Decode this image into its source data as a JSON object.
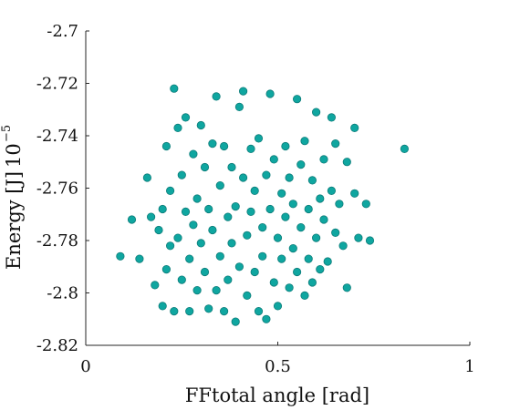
{
  "chart_data": {
    "type": "scatter",
    "xlabel": "FFtotal angle [rad]",
    "ylabel": "Energy [J]",
    "y_exponent": "10",
    "y_exponent_power": "−5",
    "xlim": [
      0,
      1
    ],
    "ylim": [
      -2.82,
      -2.7
    ],
    "xticks": [
      {
        "value": 0,
        "label": "0"
      },
      {
        "value": 0.5,
        "label": "0.5"
      },
      {
        "value": 1,
        "label": "1"
      }
    ],
    "yticks": [
      {
        "value": -2.7,
        "label": "-2.7"
      },
      {
        "value": -2.72,
        "label": "-2.72"
      },
      {
        "value": -2.74,
        "label": "-2.74"
      },
      {
        "value": -2.76,
        "label": "-2.76"
      },
      {
        "value": -2.78,
        "label": "-2.78"
      },
      {
        "value": -2.8,
        "label": "-2.8"
      },
      {
        "value": -2.82,
        "label": "-2.82"
      }
    ],
    "grid": false,
    "marker_color": "#0fa6a0",
    "marker_edge_color": "#0d7c79",
    "points": [
      [
        0.09,
        -2.786
      ],
      [
        0.12,
        -2.772
      ],
      [
        0.14,
        -2.787
      ],
      [
        0.16,
        -2.756
      ],
      [
        0.17,
        -2.771
      ],
      [
        0.18,
        -2.797
      ],
      [
        0.19,
        -2.776
      ],
      [
        0.2,
        -2.805
      ],
      [
        0.2,
        -2.768
      ],
      [
        0.21,
        -2.744
      ],
      [
        0.21,
        -2.791
      ],
      [
        0.22,
        -2.761
      ],
      [
        0.22,
        -2.782
      ],
      [
        0.23,
        -2.722
      ],
      [
        0.23,
        -2.807
      ],
      [
        0.24,
        -2.737
      ],
      [
        0.24,
        -2.779
      ],
      [
        0.25,
        -2.755
      ],
      [
        0.25,
        -2.795
      ],
      [
        0.26,
        -2.733
      ],
      [
        0.26,
        -2.769
      ],
      [
        0.27,
        -2.787
      ],
      [
        0.27,
        -2.807
      ],
      [
        0.28,
        -2.747
      ],
      [
        0.28,
        -2.774
      ],
      [
        0.29,
        -2.764
      ],
      [
        0.29,
        -2.799
      ],
      [
        0.3,
        -2.736
      ],
      [
        0.3,
        -2.781
      ],
      [
        0.31,
        -2.752
      ],
      [
        0.31,
        -2.792
      ],
      [
        0.32,
        -2.768
      ],
      [
        0.32,
        -2.806
      ],
      [
        0.33,
        -2.743
      ],
      [
        0.33,
        -2.776
      ],
      [
        0.34,
        -2.725
      ],
      [
        0.34,
        -2.799
      ],
      [
        0.35,
        -2.759
      ],
      [
        0.35,
        -2.786
      ],
      [
        0.36,
        -2.807
      ],
      [
        0.36,
        -2.744
      ],
      [
        0.37,
        -2.771
      ],
      [
        0.37,
        -2.795
      ],
      [
        0.38,
        -2.752
      ],
      [
        0.38,
        -2.781
      ],
      [
        0.39,
        -2.767
      ],
      [
        0.39,
        -2.811
      ],
      [
        0.4,
        -2.729
      ],
      [
        0.4,
        -2.79
      ],
      [
        0.41,
        -2.723
      ],
      [
        0.41,
        -2.756
      ],
      [
        0.42,
        -2.778
      ],
      [
        0.42,
        -2.801
      ],
      [
        0.43,
        -2.745
      ],
      [
        0.43,
        -2.769
      ],
      [
        0.44,
        -2.792
      ],
      [
        0.44,
        -2.761
      ],
      [
        0.45,
        -2.807
      ],
      [
        0.45,
        -2.741
      ],
      [
        0.46,
        -2.775
      ],
      [
        0.46,
        -2.786
      ],
      [
        0.47,
        -2.755
      ],
      [
        0.47,
        -2.81
      ],
      [
        0.48,
        -2.724
      ],
      [
        0.48,
        -2.768
      ],
      [
        0.49,
        -2.796
      ],
      [
        0.49,
        -2.749
      ],
      [
        0.5,
        -2.779
      ],
      [
        0.5,
        -2.805
      ],
      [
        0.51,
        -2.762
      ],
      [
        0.51,
        -2.787
      ],
      [
        0.52,
        -2.744
      ],
      [
        0.52,
        -2.771
      ],
      [
        0.53,
        -2.798
      ],
      [
        0.53,
        -2.756
      ],
      [
        0.54,
        -2.783
      ],
      [
        0.54,
        -2.766
      ],
      [
        0.55,
        -2.726
      ],
      [
        0.55,
        -2.792
      ],
      [
        0.56,
        -2.751
      ],
      [
        0.56,
        -2.775
      ],
      [
        0.57,
        -2.801
      ],
      [
        0.57,
        -2.742
      ],
      [
        0.58,
        -2.768
      ],
      [
        0.58,
        -2.787
      ],
      [
        0.59,
        -2.757
      ],
      [
        0.59,
        -2.796
      ],
      [
        0.6,
        -2.731
      ],
      [
        0.6,
        -2.779
      ],
      [
        0.61,
        -2.764
      ],
      [
        0.61,
        -2.791
      ],
      [
        0.62,
        -2.749
      ],
      [
        0.62,
        -2.772
      ],
      [
        0.63,
        -2.788
      ],
      [
        0.64,
        -2.733
      ],
      [
        0.64,
        -2.761
      ],
      [
        0.65,
        -2.777
      ],
      [
        0.65,
        -2.743
      ],
      [
        0.66,
        -2.766
      ],
      [
        0.67,
        -2.782
      ],
      [
        0.68,
        -2.75
      ],
      [
        0.68,
        -2.798
      ],
      [
        0.7,
        -2.737
      ],
      [
        0.7,
        -2.762
      ],
      [
        0.71,
        -2.779
      ],
      [
        0.73,
        -2.766
      ],
      [
        0.74,
        -2.78
      ],
      [
        0.83,
        -2.745
      ]
    ]
  }
}
